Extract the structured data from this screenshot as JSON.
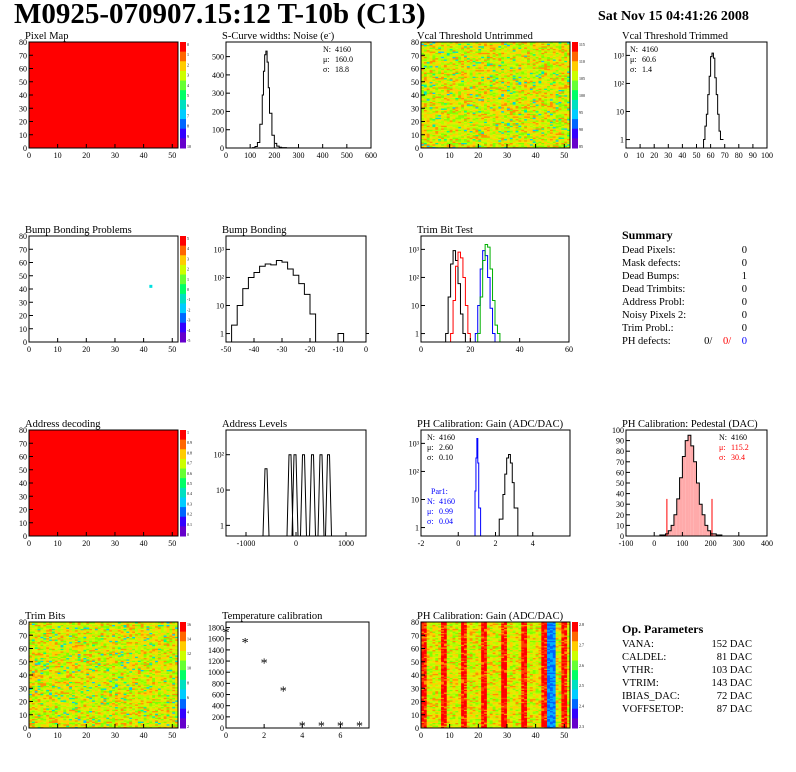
{
  "page": {
    "title": "M0925-070907.15:12 T-10b (C13)",
    "date": "Sat Nov 15 04:41:26 2008"
  },
  "chart_data": [
    {
      "id": "pixel-map",
      "type": "heatmap",
      "title": "Pixel Map",
      "xlim": [
        0,
        52
      ],
      "ylim": [
        0,
        80
      ],
      "xticks": [
        0,
        10,
        20,
        30,
        40,
        50
      ],
      "yticks": [
        0,
        10,
        20,
        30,
        40,
        50,
        60,
        70,
        80
      ],
      "fill": "uniform",
      "uniform_color": "#ff0000",
      "palette_ticks": [
        "0",
        "1",
        "2",
        "3",
        "4",
        "5",
        "6",
        "7",
        "8",
        "9",
        "10"
      ]
    },
    {
      "id": "scurve-noise",
      "type": "line",
      "title": "S-Curve widths: Noise (e",
      "title_sup": "-",
      "title_end": ")",
      "xlim": [
        0,
        600
      ],
      "ylim": [
        0,
        580
      ],
      "xticks": [
        0,
        100,
        200,
        300,
        400,
        500,
        600
      ],
      "yticks": [
        0,
        100,
        200,
        300,
        400,
        500
      ],
      "x": [
        110,
        120,
        130,
        140,
        150,
        155,
        160,
        165,
        170,
        175,
        180,
        190,
        200,
        210,
        220,
        230,
        250,
        280,
        300
      ],
      "y": [
        2,
        8,
        30,
        130,
        290,
        420,
        510,
        530,
        470,
        330,
        190,
        70,
        25,
        10,
        4,
        2,
        1,
        1,
        0
      ],
      "stats": [
        {
          "label": "N:",
          "value": "4160"
        },
        {
          "label": "μ:",
          "value": "160.0"
        },
        {
          "label": "σ:",
          "value": "18.8"
        }
      ]
    },
    {
      "id": "vcal-untrimmed",
      "type": "heatmap",
      "title": "Vcal Threshold Untrimmed",
      "xlim": [
        0,
        52
      ],
      "ylim": [
        0,
        80
      ],
      "xticks": [
        0,
        10,
        20,
        30,
        40,
        50
      ],
      "yticks": [
        0,
        10,
        20,
        30,
        40,
        50,
        60,
        70,
        80
      ],
      "fill": "random",
      "palette_ticks": [
        "115",
        "110",
        "105",
        "100",
        "95",
        "90",
        "85"
      ]
    },
    {
      "id": "vcal-trimmed",
      "type": "line",
      "title": "Vcal Threshold Trimmed",
      "log_y": true,
      "xlim": [
        0,
        100
      ],
      "ylim": [
        0.5,
        3000
      ],
      "xticks": [
        0,
        10,
        20,
        30,
        40,
        50,
        60,
        70,
        80,
        90,
        100
      ],
      "yticks": [
        1,
        10,
        100,
        1000
      ],
      "ytick_labels": [
        "1",
        "10",
        "10²",
        "10³"
      ],
      "x": [
        55,
        56,
        57,
        58,
        59,
        60,
        61,
        62,
        63,
        64,
        65,
        66,
        67
      ],
      "y": [
        1,
        3,
        8,
        40,
        180,
        900,
        1200,
        800,
        160,
        40,
        8,
        2,
        1
      ],
      "stats": [
        {
          "label": "N:",
          "value": "4160"
        },
        {
          "label": "μ:",
          "value": "60.6"
        },
        {
          "label": "σ:",
          "value": "1.4"
        }
      ]
    },
    {
      "id": "bump-problems",
      "type": "heatmap",
      "title": "Bump Bonding Problems",
      "xlim": [
        0,
        52
      ],
      "ylim": [
        0,
        80
      ],
      "xticks": [
        0,
        10,
        20,
        30,
        40,
        50
      ],
      "yticks": [
        0,
        10,
        20,
        30,
        40,
        50,
        60,
        70,
        80
      ],
      "fill": "single",
      "marker": {
        "x": 42,
        "y": 42
      },
      "marker_color": "#00e0e0",
      "palette_ticks": [
        "5",
        "4",
        "3",
        "2",
        "1",
        "0",
        "-1",
        "-2",
        "-3",
        "-4",
        "-5"
      ]
    },
    {
      "id": "bump-bonding",
      "type": "line",
      "title": "Bump Bonding",
      "log_y": true,
      "xlim": [
        -50,
        0
      ],
      "ylim": [
        0.5,
        3000
      ],
      "xticks": [
        -50,
        -40,
        -30,
        -20,
        -10,
        0
      ],
      "yticks": [
        1,
        10,
        100,
        1000
      ],
      "ytick_labels": [
        "1",
        "10",
        "10²",
        "10³"
      ],
      "x": [
        -48,
        -46,
        -44,
        -42,
        -40,
        -38,
        -36,
        -34,
        -32,
        -30,
        -28,
        -26,
        -24,
        -22,
        -20,
        -18,
        -16,
        -14,
        -12,
        -10,
        -8,
        -6,
        -4,
        -2,
        0
      ],
      "y": [
        2,
        10,
        40,
        100,
        150,
        250,
        300,
        280,
        400,
        350,
        200,
        120,
        60,
        25,
        5,
        0.5,
        0.5,
        0.5,
        0.5,
        1,
        0.5,
        0.5,
        0.5,
        0.5,
        1
      ],
      "stats": []
    },
    {
      "id": "trim-bit-test",
      "type": "line",
      "title": "Trim Bit Test",
      "log_y": true,
      "xlim": [
        0,
        60
      ],
      "ylim": [
        0.5,
        3000
      ],
      "xticks": [
        0,
        20,
        40,
        60
      ],
      "yticks": [
        1,
        10,
        100,
        1000
      ],
      "ytick_labels": [
        "1",
        "10",
        "10²",
        "10³"
      ],
      "series": [
        {
          "color": "#000000",
          "x": [
            10,
            11,
            12,
            13,
            14,
            15,
            16,
            17,
            18
          ],
          "y": [
            1,
            20,
            300,
            900,
            400,
            60,
            5,
            1,
            0.5
          ]
        },
        {
          "color": "#ff0000",
          "x": [
            12,
            13,
            14,
            15,
            16,
            17,
            18,
            19,
            20
          ],
          "y": [
            1,
            15,
            250,
            800,
            500,
            100,
            10,
            1,
            0.5
          ]
        },
        {
          "color": "#0000ff",
          "x": [
            22,
            23,
            24,
            25,
            26,
            27,
            28,
            29,
            30
          ],
          "y": [
            1,
            10,
            200,
            900,
            600,
            100,
            8,
            1,
            0.5
          ]
        },
        {
          "color": "#00b000",
          "x": [
            23,
            24,
            25,
            26,
            27,
            28,
            29,
            30,
            31,
            32
          ],
          "y": [
            1,
            20,
            400,
            1500,
            1200,
            200,
            15,
            2,
            1,
            0.5
          ]
        }
      ],
      "stats": []
    },
    {
      "id": "address-decoding",
      "type": "heatmap",
      "title": "Address decoding",
      "xlim": [
        0,
        52
      ],
      "ylim": [
        0,
        80
      ],
      "xticks": [
        0,
        10,
        20,
        30,
        40,
        50
      ],
      "yticks": [
        0,
        10,
        20,
        30,
        40,
        50,
        60,
        70,
        80
      ],
      "fill": "uniform",
      "uniform_color": "#ff0000",
      "palette_ticks": [
        "1",
        "0.9",
        "0.8",
        "0.7",
        "0.6",
        "0.5",
        "0.4",
        "0.3",
        "0.2",
        "0.1",
        "0"
      ]
    },
    {
      "id": "address-levels",
      "type": "line",
      "title": "Address Levels",
      "log_y": true,
      "xlim": [
        -1400,
        1400
      ],
      "ylim": [
        0.5,
        500
      ],
      "xticks": [
        -1000,
        0,
        1000
      ],
      "yticks": [
        1,
        10,
        100
      ],
      "ytick_labels": [
        "1",
        "10",
        "10²"
      ],
      "peaks": [
        -600,
        -120,
        -20,
        150,
        330,
        500,
        650
      ],
      "peak_heights": [
        40,
        100,
        100,
        100,
        100,
        100,
        100
      ],
      "stats": []
    },
    {
      "id": "ph-gain",
      "type": "line",
      "title": "PH Calibration: Gain (ADC/DAC)",
      "log_y": true,
      "xlim": [
        -2,
        6
      ],
      "ylim": [
        0.5,
        3000
      ],
      "xticks": [
        -2,
        0,
        2,
        4
      ],
      "yticks": [
        1,
        10,
        100,
        1000
      ],
      "ytick_labels": [
        "1",
        "10",
        "10²",
        "10³"
      ],
      "series": [
        {
          "color": "#000000",
          "x": [
            2.0,
            2.2,
            2.4,
            2.5,
            2.6,
            2.7,
            2.8,
            2.9,
            3.0,
            3.2
          ],
          "y": [
            0.5,
            2,
            15,
            80,
            300,
            400,
            200,
            40,
            5,
            0.5
          ]
        },
        {
          "color": "#0000ff",
          "x": [
            0.8,
            0.9,
            0.95,
            1.0,
            1.05,
            1.1,
            1.2
          ],
          "y": [
            0.5,
            20,
            300,
            1500,
            200,
            5,
            0.5
          ]
        }
      ],
      "stats": [
        {
          "label": "N:",
          "value": "4160"
        },
        {
          "label": "μ:",
          "value": "2.60"
        },
        {
          "label": "σ:",
          "value": "0.10"
        }
      ],
      "stats2_title": "Par1:",
      "stats2": [
        {
          "label": "N:",
          "value": "4160"
        },
        {
          "label": "μ:",
          "value": "0.99"
        },
        {
          "label": "σ:",
          "value": "0.04"
        }
      ]
    },
    {
      "id": "ph-pedestal",
      "type": "line",
      "title": "PH Calibration: Pedestal (DAC)",
      "xlim": [
        -100,
        400
      ],
      "ylim": [
        0,
        100
      ],
      "xticks": [
        -100,
        0,
        100,
        200,
        300,
        400
      ],
      "yticks": [
        0,
        10,
        20,
        30,
        40,
        50,
        60,
        70,
        80,
        90,
        100
      ],
      "x": [
        0,
        20,
        40,
        50,
        60,
        70,
        80,
        90,
        100,
        110,
        120,
        130,
        140,
        150,
        160,
        170,
        180,
        190,
        200,
        220,
        240
      ],
      "y": [
        0,
        1,
        2,
        5,
        10,
        20,
        35,
        55,
        75,
        90,
        95,
        85,
        70,
        50,
        30,
        20,
        10,
        5,
        2,
        1,
        0
      ],
      "red_lines": [
        45,
        205
      ],
      "stats": [
        {
          "label": "N:",
          "value": "4160"
        },
        {
          "label": "μ:",
          "value": "115.2"
        },
        {
          "label": "σ:",
          "value": "30.4"
        }
      ]
    },
    {
      "id": "trim-bits",
      "type": "heatmap",
      "title": "Trim Bits",
      "xlim": [
        0,
        52
      ],
      "ylim": [
        0,
        80
      ],
      "xticks": [
        0,
        10,
        20,
        30,
        40,
        50
      ],
      "yticks": [
        0,
        10,
        20,
        30,
        40,
        50,
        60,
        70,
        80
      ],
      "fill": "random",
      "palette_ticks": [
        "16",
        "14",
        "12",
        "10",
        "8",
        "6",
        "4",
        "2"
      ]
    },
    {
      "id": "temp-calibration",
      "type": "scatter",
      "title": "Temperature calibration",
      "xlim": [
        0,
        7.5
      ],
      "ylim": [
        0,
        1900
      ],
      "xticks": [
        0,
        2,
        4,
        6
      ],
      "yticks": [
        0,
        200,
        400,
        600,
        800,
        1000,
        1200,
        1400,
        1600,
        1800
      ],
      "x": [
        0,
        1,
        2,
        3,
        4,
        5,
        6,
        7
      ],
      "y": [
        1700,
        1520,
        1160,
        650,
        30,
        30,
        30,
        30
      ]
    },
    {
      "id": "ph-gain-map",
      "type": "heatmap",
      "title": "PH Calibration: Gain (ADC/DAC)",
      "xlim": [
        0,
        52
      ],
      "ylim": [
        0,
        80
      ],
      "xticks": [
        0,
        10,
        20,
        30,
        40,
        50
      ],
      "yticks": [
        0,
        10,
        20,
        30,
        40,
        50,
        60,
        70,
        80
      ],
      "fill": "columns",
      "palette_ticks": [
        "2.8",
        "2.7",
        "2.6",
        "2.5",
        "2.4",
        "2.3"
      ]
    }
  ],
  "summary": {
    "title": "Summary",
    "rows": [
      {
        "label": "Dead Pixels:",
        "value": "0"
      },
      {
        "label": "Mask defects:",
        "value": "0"
      },
      {
        "label": "Dead Bumps:",
        "value": "1"
      },
      {
        "label": "Dead Trimbits:",
        "value": "0"
      },
      {
        "label": "Address Probl:",
        "value": "0"
      },
      {
        "label": "Noisy Pixels 2:",
        "value": "0"
      },
      {
        "label": "Trim Probl.:",
        "value": "0"
      }
    ],
    "ph_label": "PH defects:",
    "ph_values": [
      "0/",
      "0/",
      "0"
    ],
    "ph_colors": [
      "#000000",
      "#ff0000",
      "#0000ff"
    ]
  },
  "op_params": {
    "title": "Op. Parameters",
    "rows": [
      {
        "label": "VANA:",
        "value": "152 DAC"
      },
      {
        "label": "CALDEL:",
        "value": "81 DAC"
      },
      {
        "label": "VTHR:",
        "value": "103 DAC"
      },
      {
        "label": "VTRIM:",
        "value": "143 DAC"
      },
      {
        "label": "IBIAS_DAC:",
        "value": "72 DAC"
      },
      {
        "label": "VOFFSETOP:",
        "value": "87 DAC"
      }
    ]
  }
}
